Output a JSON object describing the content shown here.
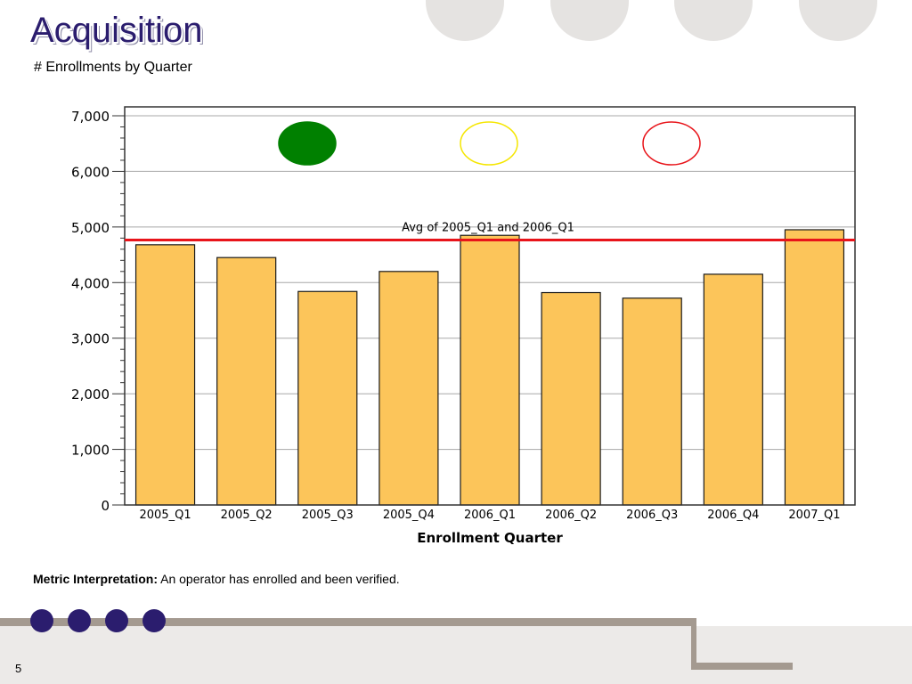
{
  "slide": {
    "title": "Acquisition",
    "subtitle": "# Enrollments by Quarter",
    "metric_label": "Metric Interpretation:",
    "metric_text": " An operator has enrolled and been verified.",
    "page_number": "5"
  },
  "colors": {
    "bar_fill": "#fcc55a",
    "bar_stroke": "#1a1a1a",
    "avg_line": "#e8141a",
    "title": "#2b1d6e",
    "status_green": "#008000",
    "status_yellow": "#f5e600",
    "status_red": "#e8141a"
  },
  "chart_data": {
    "type": "bar",
    "categories": [
      "2005_Q1",
      "2005_Q2",
      "2005_Q3",
      "2005_Q4",
      "2006_Q1",
      "2006_Q2",
      "2006_Q3",
      "2006_Q4",
      "2007_Q1"
    ],
    "values": [
      4680,
      4450,
      3840,
      4200,
      4850,
      3820,
      3720,
      4150,
      4950
    ],
    "title": "",
    "xlabel": "Enrollment Quarter",
    "ylabel": "",
    "ylim": [
      0,
      7000
    ],
    "yticks": [
      0,
      1000,
      2000,
      3000,
      4000,
      5000,
      6000,
      7000
    ],
    "ytick_labels": [
      "0",
      "1,000",
      "2,000",
      "3,000",
      "4,000",
      "5,000",
      "6,000",
      "7,000"
    ],
    "grid": true,
    "reference_line": {
      "label": "Avg of 2005_Q1 and 2006_Q1",
      "value": 4765
    },
    "status_indicators": [
      {
        "name": "green",
        "filled": true
      },
      {
        "name": "yellow",
        "filled": false
      },
      {
        "name": "red",
        "filled": false
      }
    ]
  }
}
